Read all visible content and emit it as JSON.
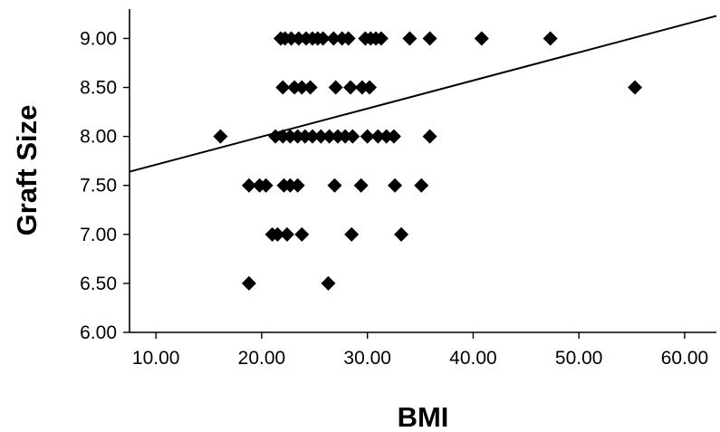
{
  "chart_data": {
    "type": "scatter",
    "title": "",
    "xlabel": "BMI",
    "ylabel": "Graft Size",
    "xlim": [
      7.5,
      63
    ],
    "ylim": [
      6.0,
      9.3
    ],
    "x_ticks": [
      "10.00",
      "20.00",
      "30.00",
      "40.00",
      "50.00",
      "60.00"
    ],
    "y_ticks": [
      "6.00",
      "6.50",
      "7.00",
      "7.50",
      "8.00",
      "8.50",
      "9.00"
    ],
    "grid": false,
    "legend": "none",
    "marker": "diamond",
    "colors": {
      "points": "#000000",
      "fit_line": "#000000",
      "axes": "#000000"
    },
    "series": [
      {
        "points": [
          [
            21.8,
            9.0
          ],
          [
            22.2,
            9.0
          ],
          [
            22.8,
            9.0
          ],
          [
            23.5,
            9.0
          ],
          [
            24.2,
            9.0
          ],
          [
            24.8,
            9.0
          ],
          [
            25.3,
            9.0
          ],
          [
            25.8,
            9.0
          ],
          [
            26.8,
            9.0
          ],
          [
            27.6,
            9.0
          ],
          [
            28.2,
            9.0
          ],
          [
            29.8,
            9.0
          ],
          [
            30.3,
            9.0
          ],
          [
            30.8,
            9.0
          ],
          [
            31.3,
            9.0
          ],
          [
            34.0,
            9.0
          ],
          [
            35.9,
            9.0
          ],
          [
            40.8,
            9.0
          ],
          [
            47.3,
            9.0
          ],
          [
            22.0,
            8.5
          ],
          [
            23.1,
            8.5
          ],
          [
            23.8,
            8.5
          ],
          [
            24.6,
            8.5
          ],
          [
            27.0,
            8.5
          ],
          [
            28.4,
            8.5
          ],
          [
            29.5,
            8.5
          ],
          [
            30.2,
            8.5
          ],
          [
            55.3,
            8.5
          ],
          [
            16.1,
            8.0
          ],
          [
            21.3,
            8.0
          ],
          [
            22.0,
            8.0
          ],
          [
            22.7,
            8.0
          ],
          [
            23.4,
            8.0
          ],
          [
            24.1,
            8.0
          ],
          [
            24.8,
            8.0
          ],
          [
            25.6,
            8.0
          ],
          [
            26.4,
            8.0
          ],
          [
            27.2,
            8.0
          ],
          [
            27.9,
            8.0
          ],
          [
            28.6,
            8.0
          ],
          [
            30.0,
            8.0
          ],
          [
            31.0,
            8.0
          ],
          [
            31.8,
            8.0
          ],
          [
            32.5,
            8.0
          ],
          [
            35.9,
            8.0
          ],
          [
            18.8,
            7.5
          ],
          [
            19.8,
            7.5
          ],
          [
            20.4,
            7.5
          ],
          [
            22.1,
            7.5
          ],
          [
            22.7,
            7.5
          ],
          [
            23.4,
            7.5
          ],
          [
            26.9,
            7.5
          ],
          [
            29.4,
            7.5
          ],
          [
            32.6,
            7.5
          ],
          [
            35.1,
            7.5
          ],
          [
            21.0,
            7.0
          ],
          [
            21.5,
            7.0
          ],
          [
            22.4,
            7.0
          ],
          [
            23.8,
            7.0
          ],
          [
            28.5,
            7.0
          ],
          [
            33.2,
            7.0
          ],
          [
            18.8,
            6.5
          ],
          [
            26.3,
            6.5
          ]
        ]
      }
    ],
    "fit_line": {
      "x": [
        7.5,
        63
      ],
      "y": [
        7.64,
        9.23
      ]
    }
  }
}
